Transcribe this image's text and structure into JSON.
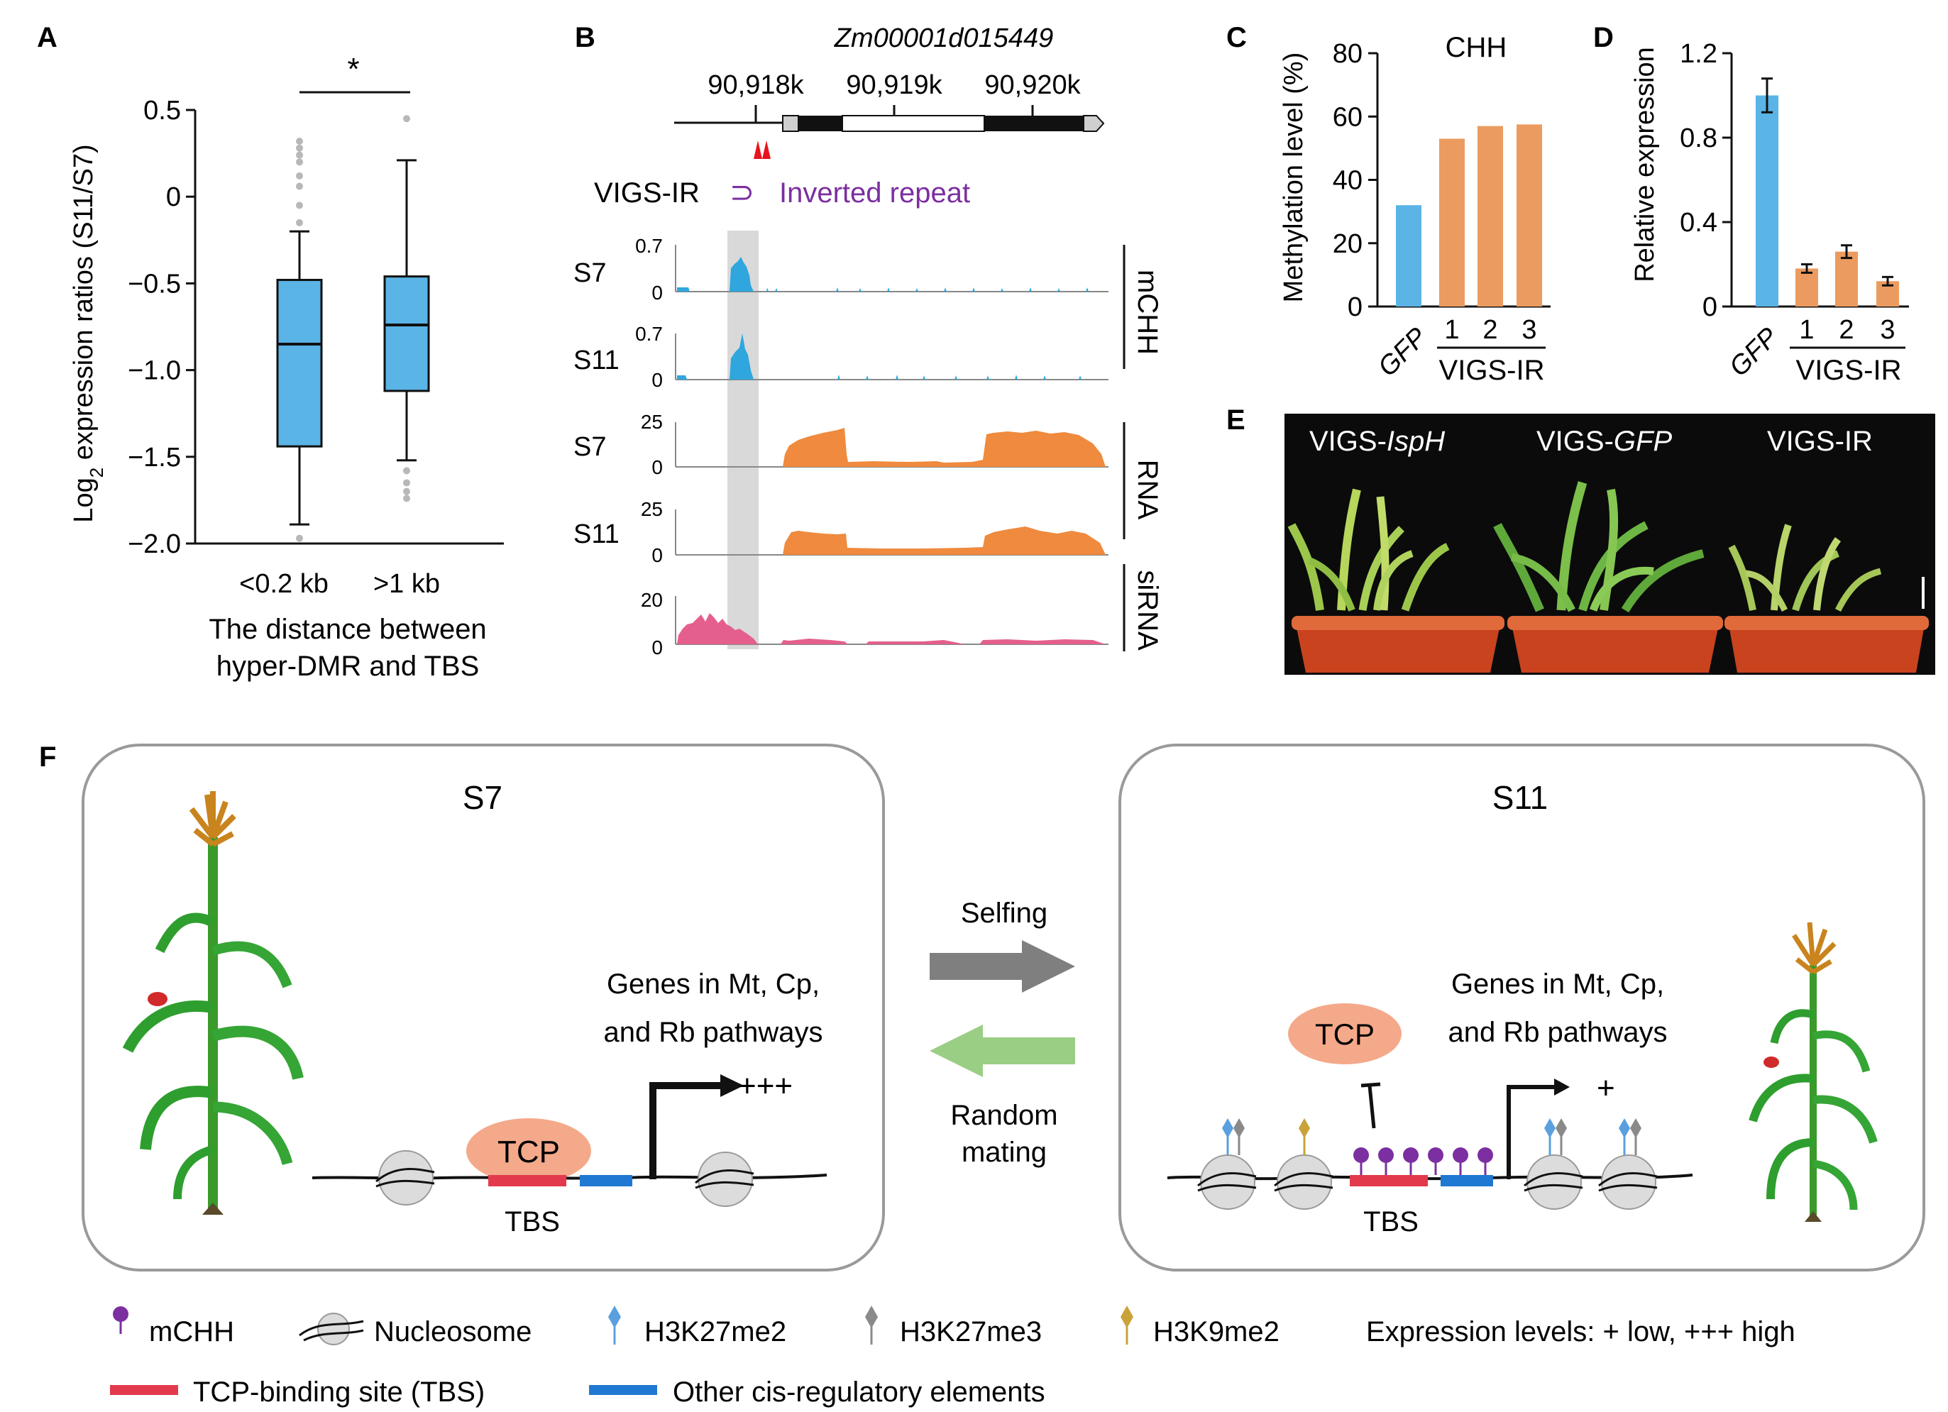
{
  "panels": {
    "a": {
      "label": "A",
      "significance": "*",
      "ylabel": "Log2 expression ratios (S11/S7)",
      "ylabel_main": "Log",
      "ylabel_sub": "2",
      "ylabel_rest": " expression ratios (S11/S7)",
      "yticks": [
        "0.5",
        "0",
        "−0.5",
        "−1.0",
        "−1.5",
        "−2.0"
      ],
      "categories": [
        "<0.2 kb",
        ">1 kb"
      ],
      "xlabel_line1": "The distance between",
      "xlabel_line2": "hyper-DMR and TBS"
    },
    "b": {
      "label": "B",
      "gene": "Zm00001d015449",
      "positions": [
        "90,918k",
        "90,919k",
        "90,920k"
      ],
      "vigs_label": "VIGS-IR",
      "ir_symbol": "⊃",
      "ir_label": "Inverted repeat",
      "tracks": [
        {
          "sample": "S7",
          "max": "0.7",
          "zero": "0"
        },
        {
          "sample": "S11",
          "max": "0.7",
          "zero": "0"
        },
        {
          "sample": "S7",
          "max": "25",
          "zero": "0"
        },
        {
          "sample": "S11",
          "max": "25",
          "zero": "0"
        },
        {
          "sample": "",
          "max": "20",
          "zero": "0"
        }
      ],
      "groups": [
        "mCHH",
        "RNA",
        "siRNA"
      ]
    },
    "c": {
      "label": "C",
      "title": "CHH",
      "ylabel": "Methylation level (%)",
      "yticks": [
        "80",
        "60",
        "40",
        "20",
        "0"
      ],
      "gfp": "GFP",
      "reps": [
        "1",
        "2",
        "3"
      ],
      "group": "VIGS-IR"
    },
    "d": {
      "label": "D",
      "ylabel": "Relative expression",
      "yticks": [
        "1.2",
        "0.8",
        "0.4",
        "0"
      ],
      "gfp": "GFP",
      "reps": [
        "1",
        "2",
        "3"
      ],
      "group": "VIGS-IR"
    },
    "e": {
      "label": "E",
      "groups": [
        {
          "prefix": "VIGS-",
          "italic": "IspH"
        },
        {
          "prefix": "VIGS-",
          "italic": "GFP"
        },
        {
          "prefix": "VIGS-IR",
          "italic": ""
        }
      ]
    },
    "f": {
      "label": "F",
      "left_title": "S7",
      "right_title": "S11",
      "genes_line1": "Genes in Mt, Cp,",
      "genes_line2": "and Rb pathways",
      "tcp": "TCP",
      "tbs": "TBS",
      "high": "+++",
      "low": "+",
      "selfing": "Selfing",
      "random_line1": "Random",
      "random_line2": "mating"
    }
  },
  "legend": {
    "mchh": "mCHH",
    "nucleosome": "Nucleosome",
    "h3k27me2": "H3K27me2",
    "h3k27me3": "H3K27me3",
    "h3k9me2": "H3K9me2",
    "expression": "Expression levels: + low, +++ high",
    "tbs": "TCP-binding site (TBS)",
    "other": "Other cis-regulatory elements"
  },
  "colors": {
    "blue": "#5ab4e5",
    "orange": "#eb9b5f",
    "track_blue": "#2fa6dd",
    "track_orange": "#ef8a3e",
    "track_pink": "#e45f8e",
    "purple": "#7b2fa0",
    "tbs_red": "#e23a4c",
    "element_blue": "#1f78d1",
    "tcp_fill": "#f4a98a",
    "arrow_grey": "#7f7f7f",
    "arrow_green": "#9bce85"
  },
  "chart_data": [
    {
      "panel": "A",
      "type": "box",
      "categories": [
        "<0.2 kb",
        ">1 kb"
      ],
      "ylim": [
        -2.0,
        0.5
      ],
      "boxes": [
        {
          "whisker_low": -1.89,
          "q1": -1.44,
          "median": -0.85,
          "q3": -0.48,
          "whisker_high": -0.2,
          "outliers": [
            0.32,
            0.28,
            0.24,
            0.2,
            0.12,
            0.06,
            -0.05,
            -0.15,
            -1.97
          ]
        },
        {
          "whisker_low": -1.52,
          "q1": -1.12,
          "median": -0.74,
          "q3": -0.46,
          "whisker_high": 0.21,
          "outliers": [
            0.45,
            -1.58,
            -1.65,
            -1.7,
            -1.74
          ]
        }
      ]
    },
    {
      "panel": "C",
      "type": "bar",
      "title": "CHH",
      "ylabel": "Methylation level (%)",
      "categories": [
        "GFP",
        "1",
        "2",
        "3"
      ],
      "values": [
        32,
        53,
        57,
        57.5
      ],
      "ylim": [
        0,
        80
      ]
    },
    {
      "panel": "D",
      "type": "bar",
      "ylabel": "Relative expression",
      "categories": [
        "GFP",
        "1",
        "2",
        "3"
      ],
      "values": [
        1.0,
        0.18,
        0.26,
        0.12
      ],
      "errors": [
        0.08,
        0.02,
        0.03,
        0.02
      ],
      "ylim": [
        0,
        1.2
      ]
    }
  ]
}
